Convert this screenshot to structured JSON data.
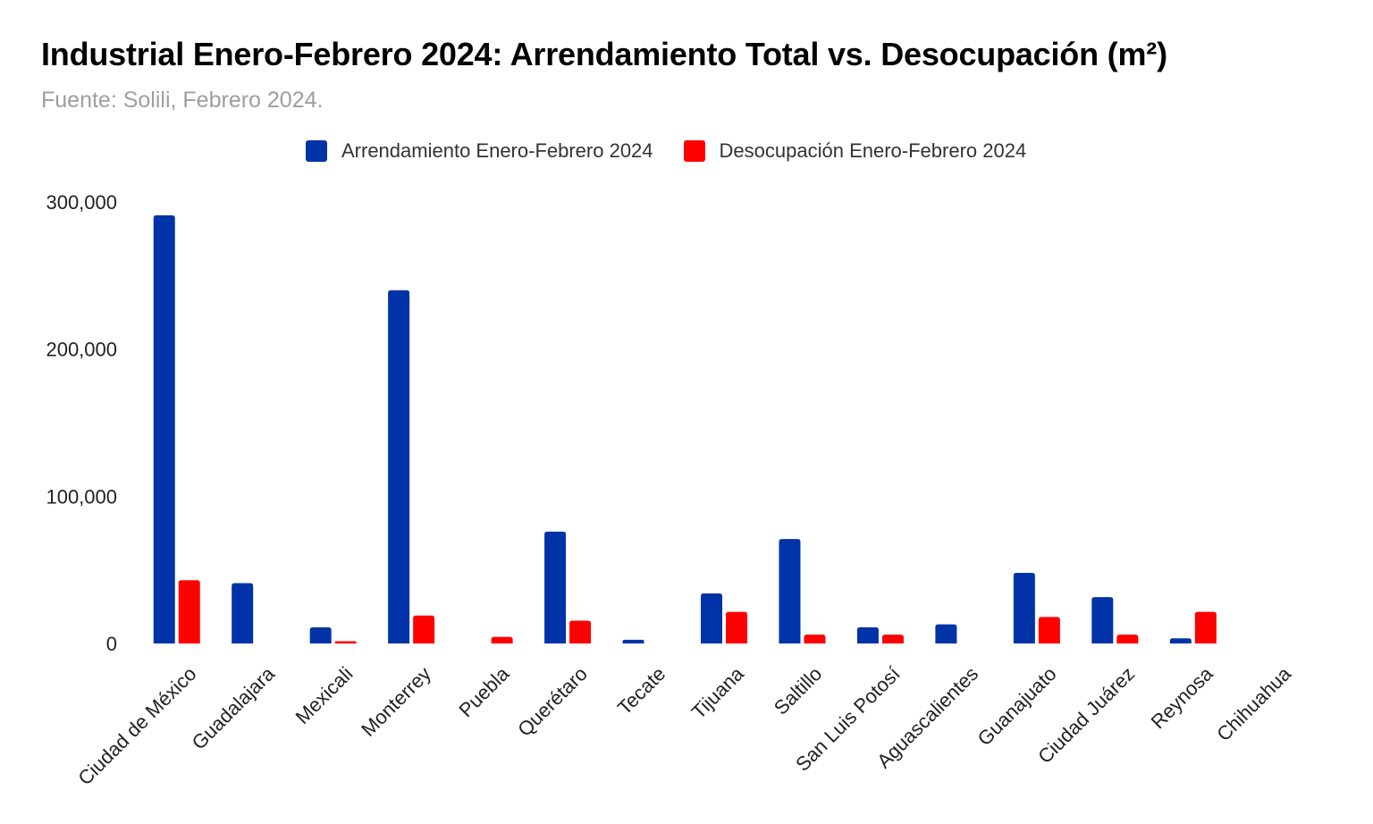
{
  "chart_data": {
    "type": "bar",
    "title": "Industrial Enero-Febrero 2024: Arrendamiento Total vs. Desocupación (m²)",
    "subtitle": "Fuente: Solili, Febrero 2024.",
    "xlabel": "",
    "ylabel": "",
    "ylim": [
      0,
      300000
    ],
    "yticks": [
      0,
      100000,
      200000,
      300000
    ],
    "ytick_labels": [
      "0",
      "100,000",
      "200,000",
      "300,000"
    ],
    "grid": false,
    "legend_position": "top-center",
    "categories": [
      "Ciudad de México",
      "Guadalajara",
      "Mexicali",
      "Monterrey",
      "Puebla",
      "Querétaro",
      "Tecate",
      "Tijuana",
      "Saltillo",
      "San Luis Potosí",
      "Aguascalientes",
      "Guanajuato",
      "Ciudad Juárez",
      "Reynosa",
      "Chihuahua"
    ],
    "series": [
      {
        "name": "Arrendamiento Enero-Febrero 2024",
        "color": "#0033a8",
        "values": [
          291000,
          41000,
          11000,
          240000,
          0,
          76000,
          2500,
          34000,
          71000,
          11000,
          13000,
          48000,
          31500,
          3500,
          0
        ]
      },
      {
        "name": "Desocupación Enero-Febrero 2024",
        "color": "#ff0000",
        "values": [
          43000,
          0,
          1500,
          19000,
          4500,
          15500,
          0,
          21500,
          6000,
          6000,
          0,
          18000,
          6000,
          21500,
          0
        ]
      }
    ]
  }
}
